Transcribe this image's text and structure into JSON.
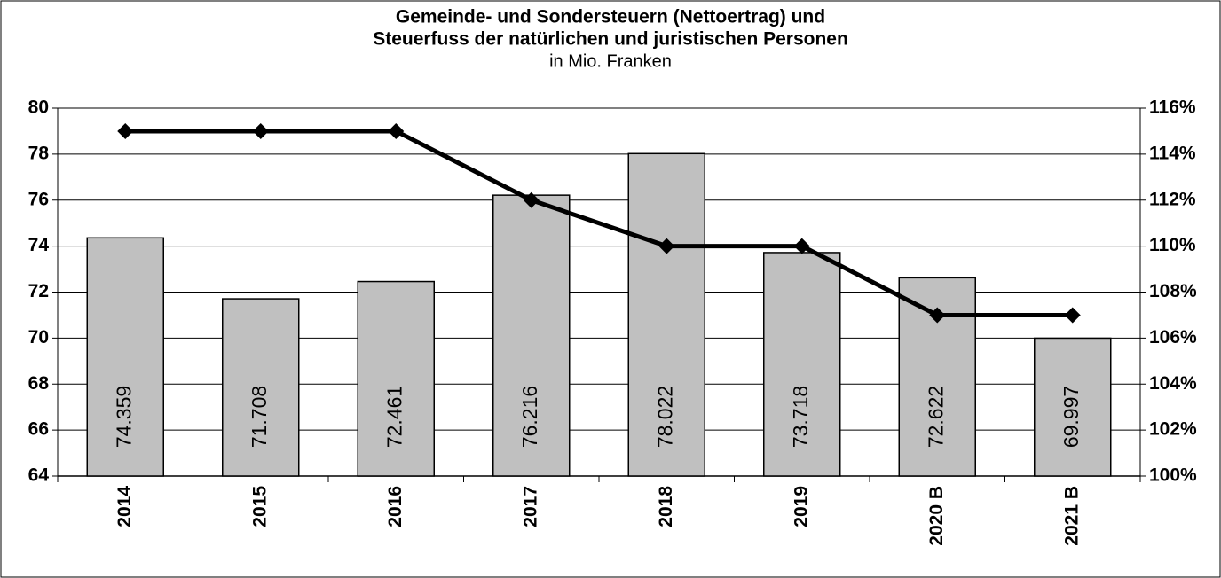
{
  "chart_data": {
    "type": "bar-line",
    "title": [
      "Gemeinde- und Sondersteuern (Nettoertrag) und",
      "Steuerfuss der natürlichen und juristischen Personen"
    ],
    "subtitle": "in Mio. Franken",
    "categories": [
      "2014",
      "2015",
      "2016",
      "2017",
      "2018",
      "2019",
      "2020 B",
      "2021 B"
    ],
    "series": [
      {
        "type": "bar",
        "color": "#c0c0c0",
        "values": [
          74.359,
          71.708,
          72.461,
          76.216,
          78.022,
          73.718,
          72.622,
          69.997
        ]
      },
      {
        "type": "line",
        "axis": "y2",
        "color": "#000000",
        "values": [
          115,
          115,
          115,
          112,
          110,
          110,
          107,
          107
        ]
      }
    ],
    "ylim": [
      64,
      80
    ],
    "yticks": [
      64,
      66,
      68,
      70,
      72,
      74,
      76,
      78,
      80
    ],
    "y2lim": [
      100,
      116
    ],
    "y2ticks": [
      {
        "value": 100,
        "label": "100%"
      },
      {
        "value": 102,
        "label": "102%"
      },
      {
        "value": 104,
        "label": "104%"
      },
      {
        "value": 106,
        "label": "106%"
      },
      {
        "value": 108,
        "label": "108%"
      },
      {
        "value": 110,
        "label": "110%"
      },
      {
        "value": 112,
        "label": "112%"
      },
      {
        "value": 114,
        "label": "114%"
      },
      {
        "value": 116,
        "label": "116%"
      }
    ],
    "grid": true
  }
}
